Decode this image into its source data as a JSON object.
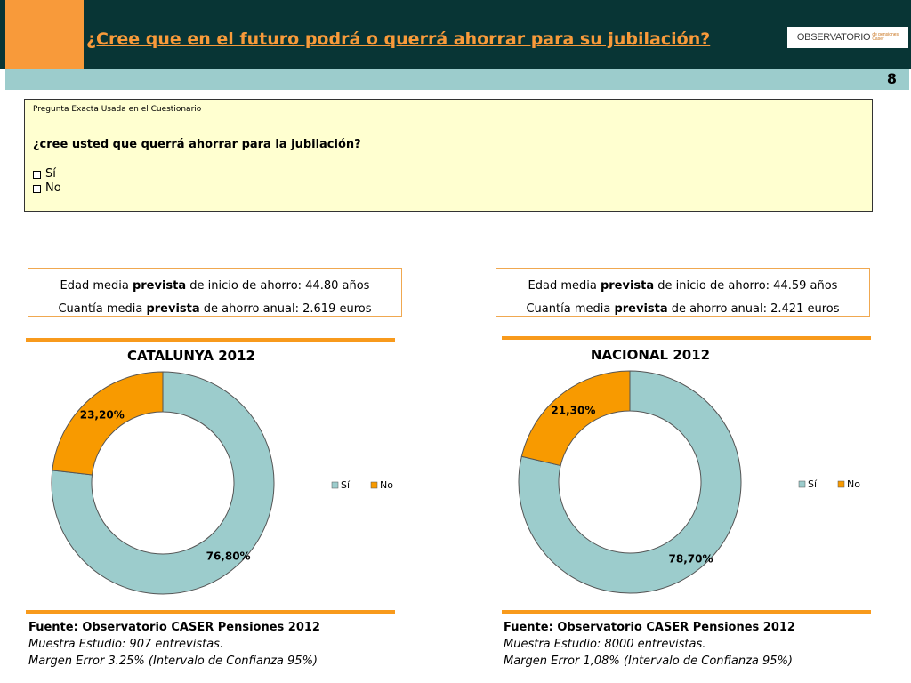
{
  "header": {
    "title": "¿Cree que en el futuro podrá o querrá ahorrar para su jubilación?",
    "logo_main": "OBSERVATORIO",
    "logo_sub_line1": "de pensiones",
    "logo_sub_line2": "Caser",
    "page_number": "8"
  },
  "question": {
    "label": "Pregunta Exacta Usada en el Cuestionario",
    "text": "¿cree usted que querrá ahorrar para la jubilación?",
    "options": [
      "Sí",
      "No"
    ]
  },
  "stats": [
    {
      "line1_pre": "Edad media ",
      "line1_bold": "prevista",
      "line1_post": " de inicio de ahorro: 44.80 años",
      "line2_pre": "Cuantía media ",
      "line2_bold": "prevista",
      "line2_post": " de ahorro anual: 2.619 euros"
    },
    {
      "line1_pre": "Edad media ",
      "line1_bold": "prevista",
      "line1_post": " de inicio de ahorro: 44.59 años",
      "line2_pre": "Cuantía media ",
      "line2_bold": "prevista",
      "line2_post": " de ahorro anual: 2.421 euros"
    }
  ],
  "colors": {
    "si": "#9ccccc",
    "no": "#f89a00",
    "accent": "#f89a3a",
    "header_bg": "#083535"
  },
  "chart_data": [
    {
      "type": "pie",
      "title": "CATALUNYA 2012",
      "categories": [
        "Sí",
        "No"
      ],
      "values": [
        76.8,
        23.2
      ],
      "labels": [
        "76,80%",
        "23,20%"
      ],
      "legend": "right"
    },
    {
      "type": "pie",
      "title": "NACIONAL 2012",
      "categories": [
        "Sí",
        "No"
      ],
      "values": [
        78.7,
        21.3
      ],
      "labels": [
        "78,70%",
        "21,30%"
      ],
      "legend": "right"
    }
  ],
  "sources": [
    {
      "source": "Fuente: Observatorio CASER Pensiones 2012",
      "sample": "Muestra Estudio: 907 entrevistas.",
      "error": "Margen Error 3.25% (Intervalo de Confianza 95%)"
    },
    {
      "source": "Fuente: Observatorio CASER Pensiones 2012",
      "sample": "Muestra Estudio: 8000 entrevistas.",
      "error": "Margen Error 1,08% (Intervalo de Confianza 95%)"
    }
  ]
}
